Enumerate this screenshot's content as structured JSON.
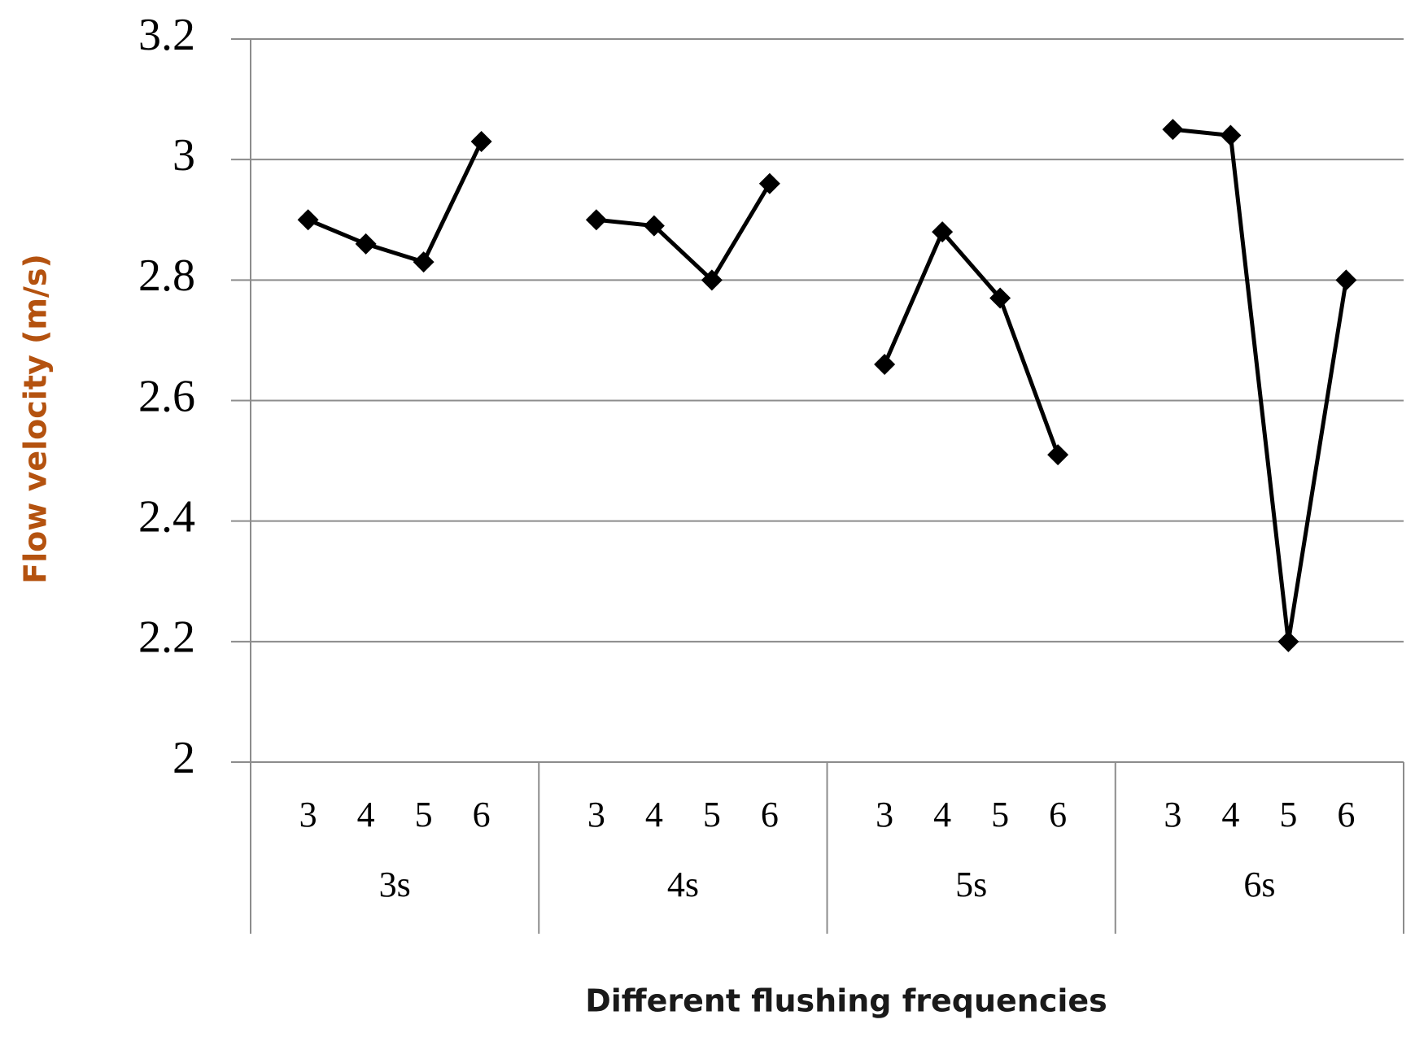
{
  "chart_data": {
    "type": "line",
    "y_label": "Flow velocity (m/s)",
    "x_label": "Different flushing frequencies",
    "color": "#000000",
    "grid": true,
    "ylim": [
      2,
      3.2
    ],
    "yticks": [
      2,
      2.2,
      2.4,
      2.6,
      2.8,
      3,
      3.2
    ],
    "groups": [
      {
        "label": "3s",
        "categories": [
          "3",
          "4",
          "5",
          "6"
        ],
        "values": [
          2.9,
          2.86,
          2.83,
          3.03
        ]
      },
      {
        "label": "4s",
        "categories": [
          "3",
          "4",
          "5",
          "6"
        ],
        "values": [
          2.9,
          2.89,
          2.8,
          2.96
        ]
      },
      {
        "label": "5s",
        "categories": [
          "3",
          "4",
          "5",
          "6"
        ],
        "values": [
          2.66,
          2.88,
          2.77,
          2.51
        ]
      },
      {
        "label": "6s",
        "categories": [
          "3",
          "4",
          "5",
          "6"
        ],
        "values": [
          3.05,
          3.04,
          2.2,
          2.8
        ]
      }
    ]
  }
}
